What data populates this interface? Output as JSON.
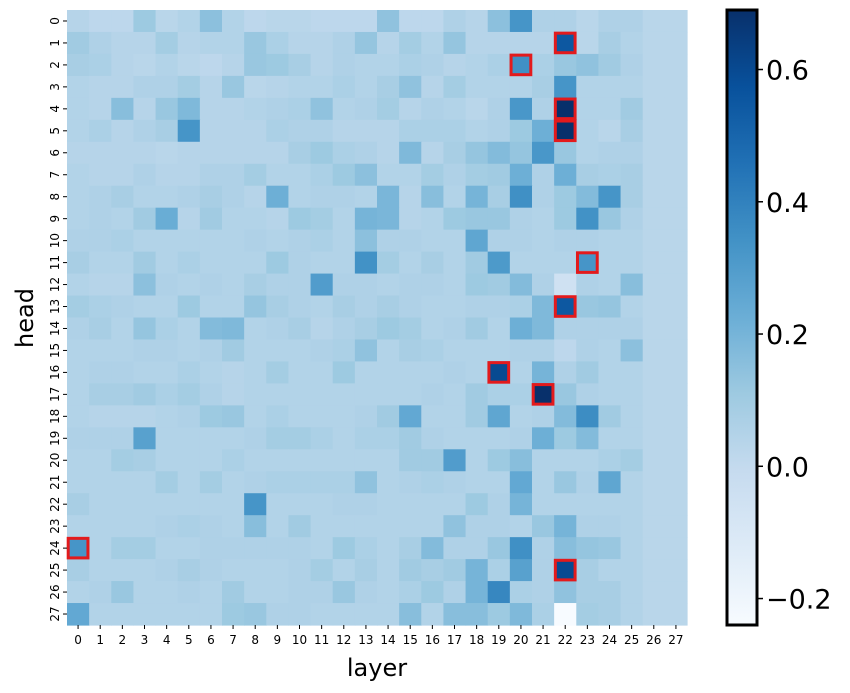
{
  "chart_data": {
    "type": "heatmap",
    "xlabel": "layer",
    "ylabel": "head",
    "x_ticks": [
      "0",
      "1",
      "2",
      "3",
      "4",
      "5",
      "6",
      "7",
      "8",
      "9",
      "10",
      "11",
      "12",
      "13",
      "14",
      "15",
      "16",
      "17",
      "18",
      "19",
      "20",
      "21",
      "22",
      "23",
      "24",
      "25",
      "26",
      "27"
    ],
    "y_ticks": [
      "0",
      "1",
      "2",
      "3",
      "4",
      "5",
      "6",
      "7",
      "8",
      "9",
      "10",
      "11",
      "12",
      "13",
      "14",
      "15",
      "16",
      "17",
      "18",
      "19",
      "20",
      "21",
      "22",
      "23",
      "24",
      "25",
      "26",
      "27"
    ],
    "vmin": -0.24,
    "vmax": 0.69,
    "colormap": "Blues",
    "colorbar_ticks": [
      {
        "value": 0.6,
        "label": "0.6"
      },
      {
        "value": 0.4,
        "label": "0.4"
      },
      {
        "value": 0.2,
        "label": "0.2"
      },
      {
        "value": 0.0,
        "label": "0.0"
      },
      {
        "value": -0.2,
        "label": "−0.2"
      }
    ],
    "highlight_color": "#e31a1c",
    "highlighted_cells": [
      {
        "layer": 22,
        "head": 1
      },
      {
        "layer": 20,
        "head": 2
      },
      {
        "layer": 22,
        "head": 4
      },
      {
        "layer": 22,
        "head": 5
      },
      {
        "layer": 23,
        "head": 11
      },
      {
        "layer": 22,
        "head": 13
      },
      {
        "layer": 19,
        "head": 16
      },
      {
        "layer": 21,
        "head": 17
      },
      {
        "layer": 0,
        "head": 24
      },
      {
        "layer": 22,
        "head": 25
      }
    ],
    "values": [
      [
        0.04,
        0.02,
        0.02,
        0.11,
        0.03,
        0.05,
        0.15,
        0.05,
        0.02,
        0.03,
        0.03,
        0.02,
        0.02,
        0.02,
        0.14,
        0.02,
        0.02,
        0.06,
        0.04,
        0.15,
        0.33,
        0.06,
        0.06,
        0.03,
        0.06,
        0.06,
        0.03,
        0.03
      ],
      [
        0.1,
        0.06,
        0.04,
        0.04,
        0.09,
        0.04,
        0.05,
        0.05,
        0.12,
        0.07,
        0.04,
        0.04,
        0.06,
        0.13,
        0.04,
        0.09,
        0.05,
        0.13,
        0.04,
        0.04,
        0.04,
        0.04,
        0.55,
        0.03,
        0.08,
        0.05,
        0.03,
        0.03
      ],
      [
        0.08,
        0.07,
        0.04,
        0.03,
        0.05,
        0.03,
        0.02,
        0.04,
        0.12,
        0.11,
        0.08,
        0.04,
        0.06,
        0.05,
        0.05,
        0.07,
        0.06,
        0.04,
        0.05,
        0.07,
        0.35,
        0.07,
        0.12,
        0.14,
        0.1,
        0.06,
        0.03,
        0.03
      ],
      [
        0.05,
        0.04,
        0.04,
        0.06,
        0.06,
        0.09,
        0.04,
        0.12,
        0.03,
        0.04,
        0.05,
        0.05,
        0.07,
        0.05,
        0.08,
        0.14,
        0.04,
        0.09,
        0.05,
        0.05,
        0.05,
        0.08,
        0.33,
        0.05,
        0.05,
        0.05,
        0.03,
        0.03
      ],
      [
        0.05,
        0.04,
        0.16,
        0.04,
        0.12,
        0.18,
        0.04,
        0.04,
        0.05,
        0.06,
        0.07,
        0.14,
        0.05,
        0.06,
        0.09,
        0.04,
        0.06,
        0.05,
        0.03,
        0.06,
        0.32,
        0.06,
        0.69,
        0.05,
        0.05,
        0.1,
        0.03,
        0.03
      ],
      [
        0.05,
        0.07,
        0.04,
        0.06,
        0.08,
        0.33,
        0.04,
        0.04,
        0.04,
        0.07,
        0.06,
        0.06,
        0.04,
        0.04,
        0.04,
        0.07,
        0.07,
        0.07,
        0.05,
        0.06,
        0.11,
        0.22,
        0.69,
        0.05,
        0.03,
        0.08,
        0.03,
        0.03
      ],
      [
        0.04,
        0.04,
        0.04,
        0.04,
        0.03,
        0.04,
        0.04,
        0.04,
        0.04,
        0.04,
        0.08,
        0.11,
        0.07,
        0.06,
        0.04,
        0.18,
        0.04,
        0.08,
        0.13,
        0.17,
        0.13,
        0.32,
        0.12,
        0.05,
        0.06,
        0.06,
        0.03,
        0.03
      ],
      [
        0.05,
        0.04,
        0.04,
        0.06,
        0.04,
        0.04,
        0.06,
        0.06,
        0.09,
        0.05,
        0.05,
        0.07,
        0.11,
        0.15,
        0.05,
        0.05,
        0.09,
        0.06,
        0.09,
        0.1,
        0.22,
        0.06,
        0.22,
        0.08,
        0.07,
        0.08,
        0.03,
        0.03
      ],
      [
        0.05,
        0.06,
        0.08,
        0.05,
        0.05,
        0.06,
        0.08,
        0.06,
        0.04,
        0.22,
        0.05,
        0.06,
        0.06,
        0.05,
        0.19,
        0.04,
        0.16,
        0.05,
        0.2,
        0.08,
        0.35,
        0.06,
        0.11,
        0.17,
        0.33,
        0.08,
        0.03,
        0.03
      ],
      [
        0.05,
        0.06,
        0.05,
        0.1,
        0.23,
        0.04,
        0.1,
        0.05,
        0.05,
        0.04,
        0.11,
        0.09,
        0.05,
        0.2,
        0.19,
        0.04,
        0.05,
        0.11,
        0.12,
        0.12,
        0.06,
        0.05,
        0.11,
        0.34,
        0.12,
        0.06,
        0.03,
        0.03
      ],
      [
        0.06,
        0.06,
        0.07,
        0.05,
        0.05,
        0.05,
        0.05,
        0.05,
        0.06,
        0.05,
        0.06,
        0.07,
        0.05,
        0.15,
        0.06,
        0.06,
        0.05,
        0.05,
        0.26,
        0.06,
        0.06,
        0.05,
        0.06,
        0.06,
        0.05,
        0.05,
        0.03,
        0.03
      ],
      [
        0.08,
        0.05,
        0.05,
        0.1,
        0.05,
        0.07,
        0.05,
        0.05,
        0.05,
        0.11,
        0.06,
        0.05,
        0.05,
        0.34,
        0.09,
        0.05,
        0.08,
        0.05,
        0.1,
        0.31,
        0.05,
        0.05,
        0.05,
        0.33,
        0.05,
        0.05,
        0.03,
        0.03
      ],
      [
        0.05,
        0.04,
        0.04,
        0.15,
        0.06,
        0.05,
        0.06,
        0.05,
        0.08,
        0.06,
        0.06,
        0.3,
        0.06,
        0.06,
        0.05,
        0.06,
        0.06,
        0.05,
        0.11,
        0.1,
        0.17,
        0.06,
        -0.05,
        0.06,
        0.05,
        0.16,
        0.03,
        0.03
      ],
      [
        0.09,
        0.07,
        0.06,
        0.05,
        0.05,
        0.11,
        0.05,
        0.05,
        0.13,
        0.08,
        0.06,
        0.05,
        0.08,
        0.06,
        0.08,
        0.06,
        0.05,
        0.05,
        0.06,
        0.06,
        0.07,
        0.18,
        0.55,
        0.12,
        0.13,
        0.05,
        0.03,
        0.03
      ],
      [
        0.06,
        0.08,
        0.05,
        0.13,
        0.07,
        0.05,
        0.17,
        0.18,
        0.05,
        0.06,
        0.08,
        0.04,
        0.06,
        0.08,
        0.11,
        0.09,
        0.05,
        0.06,
        0.1,
        0.05,
        0.22,
        0.18,
        0.06,
        0.06,
        0.06,
        0.06,
        0.03,
        0.03
      ],
      [
        0.05,
        0.05,
        0.05,
        0.06,
        0.06,
        0.05,
        0.06,
        0.1,
        0.05,
        0.05,
        0.05,
        0.06,
        0.07,
        0.14,
        0.05,
        0.08,
        0.07,
        0.05,
        0.05,
        0.05,
        0.06,
        0.06,
        0.02,
        0.06,
        0.05,
        0.15,
        0.03,
        0.03
      ],
      [
        0.05,
        0.06,
        0.06,
        0.05,
        0.05,
        0.07,
        0.05,
        0.04,
        0.05,
        0.09,
        0.05,
        0.05,
        0.11,
        0.05,
        0.05,
        0.05,
        0.05,
        0.06,
        0.05,
        0.6,
        0.05,
        0.2,
        0.06,
        0.1,
        0.05,
        0.05,
        0.03,
        0.03
      ],
      [
        0.05,
        0.08,
        0.08,
        0.1,
        0.07,
        0.09,
        0.06,
        0.04,
        0.05,
        0.05,
        0.05,
        0.05,
        0.05,
        0.05,
        0.05,
        0.05,
        0.06,
        0.05,
        0.1,
        0.07,
        0.07,
        0.69,
        0.12,
        0.06,
        0.05,
        0.05,
        0.03,
        0.03
      ],
      [
        0.05,
        0.04,
        0.04,
        0.04,
        0.05,
        0.06,
        0.11,
        0.12,
        0.05,
        0.07,
        0.05,
        0.05,
        0.05,
        0.06,
        0.1,
        0.25,
        0.05,
        0.05,
        0.1,
        0.26,
        0.05,
        0.06,
        0.17,
        0.36,
        0.1,
        0.05,
        0.03,
        0.03
      ],
      [
        0.06,
        0.06,
        0.06,
        0.28,
        0.05,
        0.05,
        0.05,
        0.05,
        0.06,
        0.09,
        0.09,
        0.07,
        0.05,
        0.07,
        0.07,
        0.1,
        0.06,
        0.05,
        0.05,
        0.05,
        0.06,
        0.22,
        0.11,
        0.17,
        0.05,
        0.05,
        0.03,
        0.03
      ],
      [
        0.05,
        0.05,
        0.09,
        0.08,
        0.05,
        0.05,
        0.05,
        0.07,
        0.05,
        0.05,
        0.05,
        0.05,
        0.05,
        0.05,
        0.05,
        0.1,
        0.1,
        0.3,
        0.05,
        0.11,
        0.16,
        0.05,
        0.05,
        0.05,
        0.07,
        0.09,
        0.03,
        0.03
      ],
      [
        0.05,
        0.05,
        0.05,
        0.05,
        0.09,
        0.05,
        0.09,
        0.05,
        0.06,
        0.07,
        0.07,
        0.07,
        0.07,
        0.14,
        0.05,
        0.06,
        0.07,
        0.06,
        0.05,
        0.05,
        0.25,
        0.05,
        0.12,
        0.06,
        0.26,
        0.05,
        0.03,
        0.03
      ],
      [
        0.08,
        0.05,
        0.05,
        0.05,
        0.05,
        0.05,
        0.05,
        0.05,
        0.33,
        0.05,
        0.05,
        0.05,
        0.06,
        0.06,
        0.05,
        0.05,
        0.05,
        0.05,
        0.11,
        0.06,
        0.2,
        0.05,
        0.05,
        0.05,
        0.05,
        0.05,
        0.03,
        0.03
      ],
      [
        0.05,
        0.05,
        0.05,
        0.05,
        0.06,
        0.07,
        0.06,
        0.05,
        0.16,
        0.05,
        0.1,
        0.05,
        0.05,
        0.05,
        0.05,
        0.05,
        0.05,
        0.14,
        0.06,
        0.06,
        0.05,
        0.12,
        0.2,
        0.06,
        0.06,
        0.05,
        0.03,
        0.03
      ],
      [
        0.33,
        0.05,
        0.09,
        0.09,
        0.05,
        0.05,
        0.06,
        0.06,
        0.06,
        0.06,
        0.06,
        0.05,
        0.11,
        0.07,
        0.05,
        0.08,
        0.17,
        0.06,
        0.06,
        0.12,
        0.35,
        0.06,
        0.16,
        0.13,
        0.12,
        0.05,
        0.03,
        0.03
      ],
      [
        0.08,
        0.05,
        0.05,
        0.05,
        0.06,
        0.08,
        0.06,
        0.05,
        0.05,
        0.05,
        0.06,
        0.09,
        0.05,
        0.08,
        0.05,
        0.1,
        0.08,
        0.1,
        0.2,
        0.07,
        0.28,
        0.06,
        0.6,
        0.08,
        0.05,
        0.05,
        0.03,
        0.03
      ],
      [
        0.05,
        0.06,
        0.12,
        0.05,
        0.05,
        0.06,
        0.05,
        0.1,
        0.05,
        0.05,
        0.06,
        0.06,
        0.12,
        0.06,
        0.05,
        0.07,
        0.11,
        0.06,
        0.2,
        0.38,
        0.07,
        0.06,
        0.14,
        0.08,
        0.08,
        0.05,
        0.03,
        0.03
      ],
      [
        0.25,
        0.05,
        0.05,
        0.05,
        0.05,
        0.05,
        0.05,
        0.11,
        0.12,
        0.06,
        0.06,
        0.05,
        0.05,
        0.05,
        0.05,
        0.16,
        0.05,
        0.16,
        0.16,
        0.11,
        0.18,
        0.07,
        -0.24,
        0.09,
        0.08,
        0.05,
        0.03,
        0.03
      ]
    ]
  }
}
